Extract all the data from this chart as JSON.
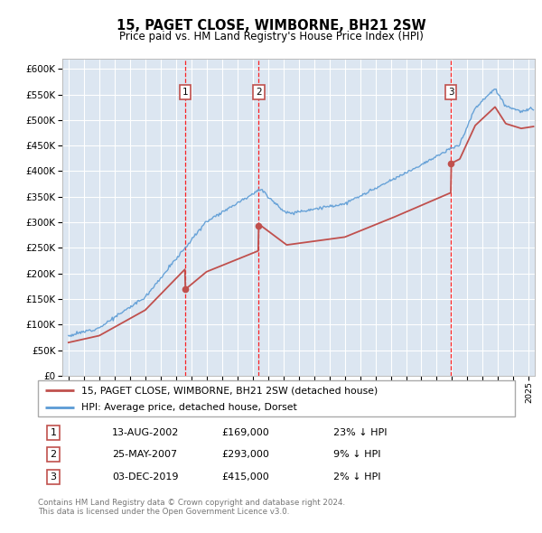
{
  "title": "15, PAGET CLOSE, WIMBORNE, BH21 2SW",
  "subtitle": "Price paid vs. HM Land Registry's House Price Index (HPI)",
  "legend_line1": "15, PAGET CLOSE, WIMBORNE, BH21 2SW (detached house)",
  "legend_line2": "HPI: Average price, detached house, Dorset",
  "footnote1": "Contains HM Land Registry data © Crown copyright and database right 2024.",
  "footnote2": "This data is licensed under the Open Government Licence v3.0.",
  "transactions": [
    {
      "num": 1,
      "date": "13-AUG-2002",
      "price": 169000,
      "price_str": "£169,000",
      "pct": "23%",
      "dir": "↓",
      "year_x": 2002.62
    },
    {
      "num": 2,
      "date": "25-MAY-2007",
      "price": 293000,
      "price_str": "£293,000",
      "pct": "9%",
      "dir": "↓",
      "year_x": 2007.4
    },
    {
      "num": 3,
      "date": "03-DEC-2019",
      "price": 415000,
      "price_str": "£415,000",
      "pct": "2%",
      "dir": "↓",
      "year_x": 2019.92
    }
  ],
  "ylim": [
    0,
    620000
  ],
  "yticks": [
    0,
    50000,
    100000,
    150000,
    200000,
    250000,
    300000,
    350000,
    400000,
    450000,
    500000,
    550000,
    600000
  ],
  "xlim_start": 1994.6,
  "xlim_end": 2025.4,
  "bg_color": "#dce6f1",
  "grid_color": "#ffffff",
  "hpi_color": "#5b9bd5",
  "price_color": "#c0504d",
  "vline_color": "#ff0000",
  "marker_color": "#c0504d",
  "box_edge_color": "#c0504d",
  "legend_edge_color": "#aaaaaa",
  "footnote_color": "#777777"
}
